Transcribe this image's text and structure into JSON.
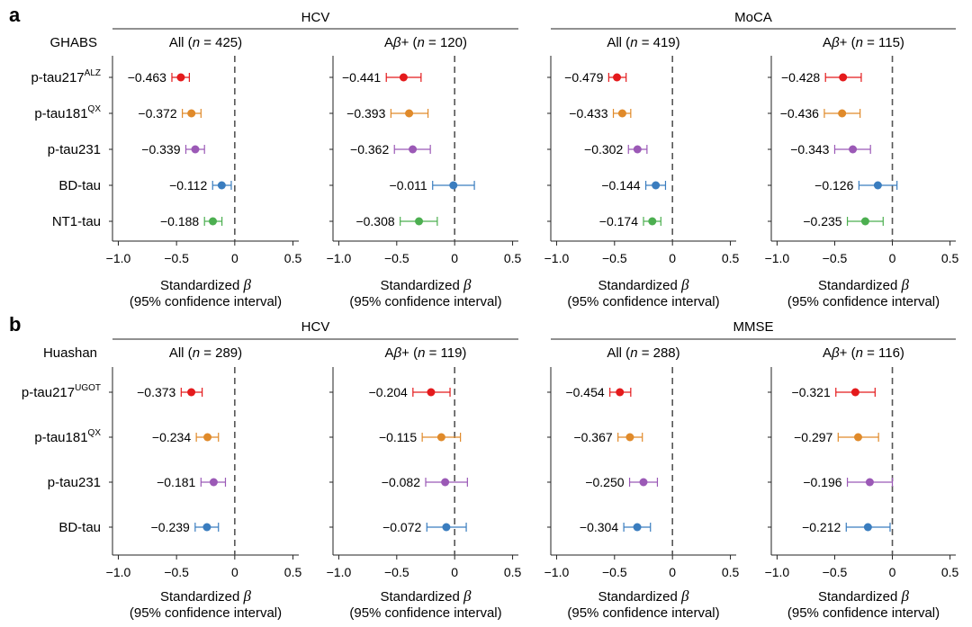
{
  "colors": {
    "p-tau217": "#e41a1c",
    "p-tau181": "#e08a2a",
    "p-tau231": "#9b59b6",
    "BD-tau": "#3a7dbf",
    "NT1-tau": "#4caf50"
  },
  "axis": {
    "xlabel_1": "Standardized",
    "xlabel_beta": "β",
    "xlabel_2": "(95% confidence interval)",
    "ticks": [
      -1.0,
      -0.5,
      0,
      0.5
    ],
    "tick_labels": [
      "-1.0",
      "-0.5",
      "0",
      "0.5"
    ],
    "xlim": [
      -1.05,
      0.55
    ]
  },
  "panels": [
    {
      "letter": "a",
      "cohort": "GHABS",
      "groups": [
        "HCV",
        "MoCA"
      ],
      "rows": [
        {
          "name": "p-tau217",
          "sup": "ALZ",
          "color_key": "p-tau217"
        },
        {
          "name": "p-tau181",
          "sup": "QX",
          "color_key": "p-tau181"
        },
        {
          "name": "p-tau231",
          "sup": "",
          "color_key": "p-tau231"
        },
        {
          "name": "BD-tau",
          "sup": "",
          "color_key": "BD-tau"
        },
        {
          "name": "NT1-tau",
          "sup": "",
          "color_key": "NT1-tau"
        }
      ],
      "subplots": [
        {
          "title_pre": "All (",
          "n_label": "n",
          "title_post": " = 425)",
          "labels": [
            "−0.463",
            "−0.372",
            "−0.339",
            "−0.112",
            "−0.188"
          ],
          "values": [
            -0.463,
            -0.372,
            -0.339,
            -0.112,
            -0.188
          ],
          "ci": [
            [
              -0.54,
              -0.39
            ],
            [
              -0.45,
              -0.29
            ],
            [
              -0.42,
              -0.26
            ],
            [
              -0.19,
              -0.03
            ],
            [
              -0.26,
              -0.11
            ]
          ]
        },
        {
          "title_pre": "A",
          "title_beta": "β",
          "title_mid": "+ (",
          "n_label": "n",
          "title_post": " = 120)",
          "labels": [
            "−0.441",
            "−0.393",
            "−0.362",
            "−0.011",
            "−0.308"
          ],
          "values": [
            -0.441,
            -0.393,
            -0.362,
            -0.011,
            -0.308
          ],
          "ci": [
            [
              -0.59,
              -0.29
            ],
            [
              -0.55,
              -0.23
            ],
            [
              -0.52,
              -0.21
            ],
            [
              -0.19,
              0.17
            ],
            [
              -0.47,
              -0.15
            ]
          ]
        },
        {
          "title_pre": "All (",
          "n_label": "n",
          "title_post": " = 419)",
          "labels": [
            "−0.479",
            "−0.433",
            "−0.302",
            "−0.144",
            "−0.174"
          ],
          "values": [
            -0.479,
            -0.433,
            -0.302,
            -0.144,
            -0.174
          ],
          "ci": [
            [
              -0.55,
              -0.4
            ],
            [
              -0.51,
              -0.36
            ],
            [
              -0.38,
              -0.22
            ],
            [
              -0.23,
              -0.06
            ],
            [
              -0.25,
              -0.1
            ]
          ]
        },
        {
          "title_pre": "A",
          "title_beta": "β",
          "title_mid": "+ (",
          "n_label": "n",
          "title_post": " = 115)",
          "labels": [
            "−0.428",
            "−0.436",
            "−0.343",
            "−0.126",
            "−0.235"
          ],
          "values": [
            -0.428,
            -0.436,
            -0.343,
            -0.126,
            -0.235
          ],
          "ci": [
            [
              -0.58,
              -0.27
            ],
            [
              -0.59,
              -0.28
            ],
            [
              -0.5,
              -0.19
            ],
            [
              -0.29,
              0.04
            ],
            [
              -0.39,
              -0.08
            ]
          ]
        }
      ]
    },
    {
      "letter": "b",
      "cohort": "Huashan",
      "groups": [
        "HCV",
        "MMSE"
      ],
      "rows": [
        {
          "name": "p-tau217",
          "sup": "UGOT",
          "color_key": "p-tau217"
        },
        {
          "name": "p-tau181",
          "sup": "QX",
          "color_key": "p-tau181"
        },
        {
          "name": "p-tau231",
          "sup": "",
          "color_key": "p-tau231"
        },
        {
          "name": "BD-tau",
          "sup": "",
          "color_key": "BD-tau"
        }
      ],
      "subplots": [
        {
          "title_pre": "All (",
          "n_label": "n",
          "title_post": " = 289)",
          "labels": [
            "−0.373",
            "−0.234",
            "−0.181",
            "−0.239"
          ],
          "values": [
            -0.373,
            -0.234,
            -0.181,
            -0.239
          ],
          "ci": [
            [
              -0.46,
              -0.28
            ],
            [
              -0.33,
              -0.14
            ],
            [
              -0.29,
              -0.08
            ],
            [
              -0.34,
              -0.14
            ]
          ]
        },
        {
          "title_pre": "A",
          "title_beta": "β",
          "title_mid": "+ (",
          "n_label": "n",
          "title_post": " = 119)",
          "labels": [
            "−0.204",
            "−0.115",
            "−0.082",
            "−0.072"
          ],
          "values": [
            -0.204,
            -0.115,
            -0.082,
            -0.072
          ],
          "ci": [
            [
              -0.36,
              -0.04
            ],
            [
              -0.28,
              0.05
            ],
            [
              -0.25,
              0.11
            ],
            [
              -0.24,
              0.1
            ]
          ]
        },
        {
          "title_pre": "All (",
          "n_label": "n",
          "title_post": " = 288)",
          "labels": [
            "−0.454",
            "−0.367",
            "−0.250",
            "−0.304"
          ],
          "values": [
            -0.454,
            -0.367,
            -0.25,
            -0.304
          ],
          "ci": [
            [
              -0.54,
              -0.36
            ],
            [
              -0.47,
              -0.26
            ],
            [
              -0.37,
              -0.13
            ],
            [
              -0.42,
              -0.19
            ]
          ]
        },
        {
          "title_pre": "A",
          "title_beta": "β",
          "title_mid": "+ (",
          "n_label": "n",
          "title_post": " = 116)",
          "labels": [
            "−0.321",
            "−0.297",
            "−0.196",
            "−0.212"
          ],
          "values": [
            -0.321,
            -0.297,
            -0.196,
            -0.212
          ],
          "ci": [
            [
              -0.49,
              -0.15
            ],
            [
              -0.47,
              -0.12
            ],
            [
              -0.39,
              0.0
            ],
            [
              -0.4,
              -0.02
            ]
          ]
        }
      ]
    }
  ],
  "chart_data": [
    {
      "type": "scatter",
      "panel": "a",
      "group": "HCV",
      "subset": "All (n = 425)",
      "categories": [
        "p-tau217ALZ",
        "p-tau181QX",
        "p-tau231",
        "BD-tau",
        "NT1-tau"
      ],
      "values": [
        -0.463,
        -0.372,
        -0.339,
        -0.112,
        -0.188
      ],
      "xlim": [
        -1.05,
        0.55
      ]
    },
    {
      "type": "scatter",
      "panel": "a",
      "group": "HCV",
      "subset": "Aβ+ (n = 120)",
      "categories": [
        "p-tau217ALZ",
        "p-tau181QX",
        "p-tau231",
        "BD-tau",
        "NT1-tau"
      ],
      "values": [
        -0.441,
        -0.393,
        -0.362,
        -0.011,
        -0.308
      ],
      "xlim": [
        -1.05,
        0.55
      ]
    },
    {
      "type": "scatter",
      "panel": "a",
      "group": "MoCA",
      "subset": "All (n = 419)",
      "categories": [
        "p-tau217ALZ",
        "p-tau181QX",
        "p-tau231",
        "BD-tau",
        "NT1-tau"
      ],
      "values": [
        -0.479,
        -0.433,
        -0.302,
        -0.144,
        -0.174
      ],
      "xlim": [
        -1.05,
        0.55
      ]
    },
    {
      "type": "scatter",
      "panel": "a",
      "group": "MoCA",
      "subset": "Aβ+ (n = 115)",
      "categories": [
        "p-tau217ALZ",
        "p-tau181QX",
        "p-tau231",
        "BD-tau",
        "NT1-tau"
      ],
      "values": [
        -0.428,
        -0.436,
        -0.343,
        -0.126,
        -0.235
      ],
      "xlim": [
        -1.05,
        0.55
      ]
    },
    {
      "type": "scatter",
      "panel": "b",
      "group": "HCV",
      "subset": "All (n = 289)",
      "categories": [
        "p-tau217UGOT",
        "p-tau181QX",
        "p-tau231",
        "BD-tau"
      ],
      "values": [
        -0.373,
        -0.234,
        -0.181,
        -0.239
      ],
      "xlim": [
        -1.05,
        0.55
      ]
    },
    {
      "type": "scatter",
      "panel": "b",
      "group": "HCV",
      "subset": "Aβ+ (n = 119)",
      "categories": [
        "p-tau217UGOT",
        "p-tau181QX",
        "p-tau231",
        "BD-tau"
      ],
      "values": [
        -0.204,
        -0.115,
        -0.082,
        -0.072
      ],
      "xlim": [
        -1.05,
        0.55
      ]
    },
    {
      "type": "scatter",
      "panel": "b",
      "group": "MMSE",
      "subset": "All (n = 288)",
      "categories": [
        "p-tau217UGOT",
        "p-tau181QX",
        "p-tau231",
        "BD-tau"
      ],
      "values": [
        -0.454,
        -0.367,
        -0.25,
        -0.304
      ],
      "xlim": [
        -1.05,
        0.55
      ]
    },
    {
      "type": "scatter",
      "panel": "b",
      "group": "MMSE",
      "subset": "Aβ+ (n = 116)",
      "categories": [
        "p-tau217UGOT",
        "p-tau181QX",
        "p-tau231",
        "BD-tau"
      ],
      "values": [
        -0.321,
        -0.297,
        -0.196,
        -0.212
      ],
      "xlim": [
        -1.05,
        0.55
      ]
    }
  ]
}
